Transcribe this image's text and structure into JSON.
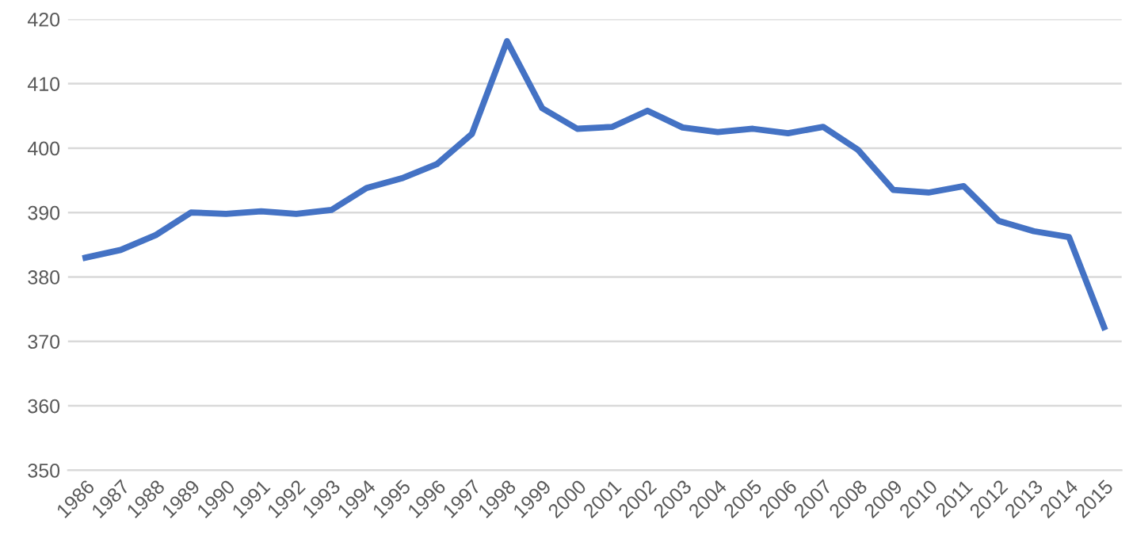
{
  "chart_data": {
    "type": "line",
    "categories": [
      "1986",
      "1987",
      "1988",
      "1989",
      "1990",
      "1991",
      "1992",
      "1993",
      "1994",
      "1995",
      "1996",
      "1997",
      "1998",
      "1999",
      "2000",
      "2001",
      "2002",
      "2003",
      "2004",
      "2005",
      "2006",
      "2007",
      "2008",
      "2009",
      "2010",
      "2011",
      "2012",
      "2013",
      "2014",
      "2015"
    ],
    "series": [
      {
        "color": "#4472c4",
        "values": [
          383.0,
          384.2,
          386.5,
          390.0,
          389.8,
          390.2,
          389.8,
          390.4,
          393.8,
          395.3,
          397.5,
          402.2,
          416.6,
          406.2,
          403.0,
          403.3,
          405.8,
          403.2,
          402.5,
          403.0,
          402.3,
          403.3,
          399.7,
          393.5,
          393.1,
          394.1,
          388.7,
          387.1,
          386.2,
          372.2
        ]
      }
    ],
    "ylim": [
      350,
      420
    ],
    "yticks": [
      350,
      360,
      370,
      380,
      390,
      400,
      410,
      420
    ],
    "grid": "y",
    "legend": false,
    "marker": "none",
    "line_style": "solid"
  }
}
